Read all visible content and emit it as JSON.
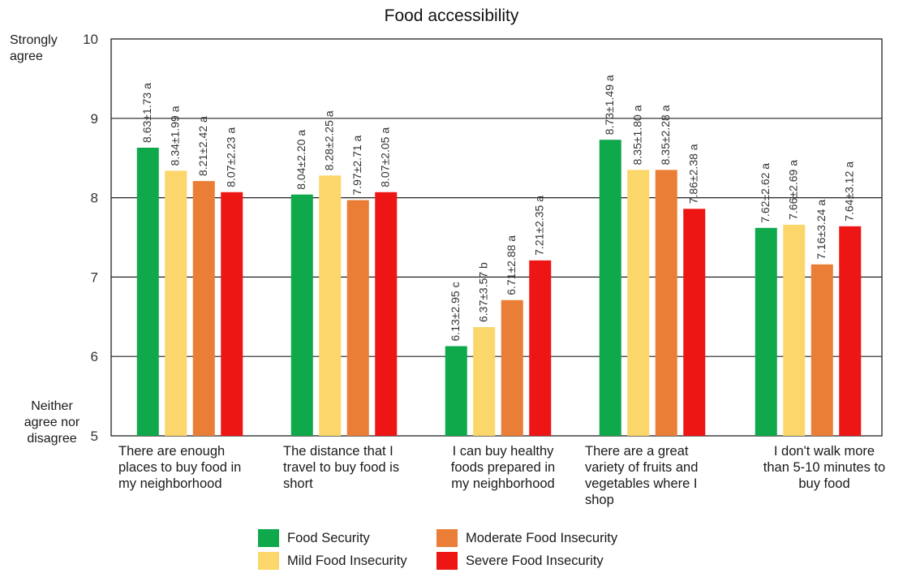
{
  "chart_data": {
    "type": "bar",
    "title": "Food accessibility",
    "ylim": [
      5,
      10
    ],
    "yticks": [
      5,
      6,
      7,
      8,
      9,
      10
    ],
    "y_anchor_labels": {
      "top": [
        "Strongly",
        "agree"
      ],
      "bottom": [
        "Neither",
        "agree nor",
        "disagree"
      ]
    },
    "grid": true,
    "legend_position": "bottom",
    "categories": [
      [
        "There are enough",
        "places to buy food in",
        "my neighborhood"
      ],
      [
        "The distance that I",
        "travel to buy food is",
        "short"
      ],
      [
        "I can buy healthy",
        "foods prepared in",
        "my neighborhood"
      ],
      [
        "There are a great",
        "variety of fruits and",
        "vegetables where I",
        "shop"
      ],
      [
        "I don't walk more",
        "than 5-10 minutes to",
        "buy food"
      ]
    ],
    "series": [
      {
        "name": "Food Security",
        "color": "#0fa84b",
        "values": [
          8.63,
          8.04,
          6.13,
          8.73,
          7.62
        ],
        "labels": [
          "8.63±1.73 a",
          "8.04±2.20 a",
          "6.13±2.95 c",
          "8.73±1.49 a",
          "7.62±2.62 a"
        ]
      },
      {
        "name": "Mild Food Insecurity",
        "color": "#fbd66a",
        "values": [
          8.34,
          8.28,
          6.37,
          8.35,
          7.66
        ],
        "labels": [
          "8.34±1.99 a",
          "8.28±2.25 a",
          "6.37±3.57 b",
          "8.35±1.80 a",
          "7.66±2.69 a"
        ]
      },
      {
        "name": "Moderate Food Insecurity",
        "color": "#ea7e36",
        "values": [
          8.21,
          7.97,
          6.71,
          8.35,
          7.16
        ],
        "labels": [
          "8.21±2.42 a",
          "7.97±2.71 a",
          "6.71±2.88 a",
          "8.35±2.28 a",
          "7.16±3.24 a"
        ]
      },
      {
        "name": "Severe Food Insecurity",
        "color": "#ee1515",
        "values": [
          8.07,
          8.07,
          7.21,
          7.86,
          7.64
        ],
        "labels": [
          "8.07±2.23 a",
          "8.07±2.05 a",
          "7.21±2.35 a",
          "7.86±2.38 a",
          "7.64±3.12 a"
        ]
      }
    ]
  }
}
